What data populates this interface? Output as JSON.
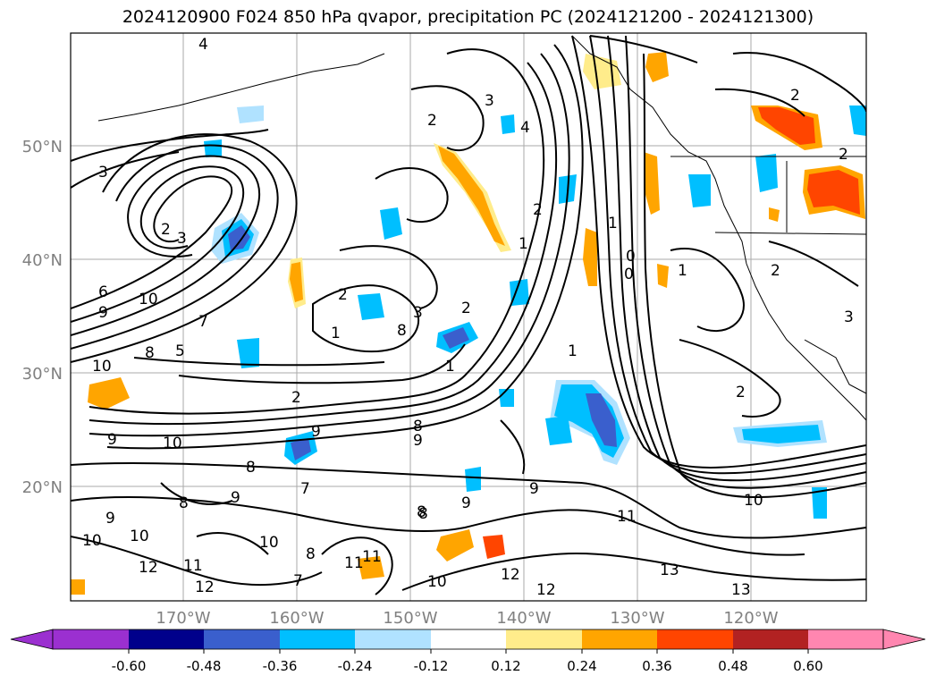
{
  "title": "2024120900 F024 850 hPa qvapor, precipitation PC (2024121200 - 2024121300)",
  "map": {
    "lat_labels": [
      "50°N",
      "40°N",
      "30°N",
      "20°N"
    ],
    "lon_labels": [
      "170°W",
      "160°W",
      "150°W",
      "140°W",
      "130°W",
      "120°W"
    ],
    "tick_label_color": "#808080",
    "contour_labels": [
      "4",
      "2",
      "3",
      "2",
      "3",
      "6",
      "10",
      "9",
      "8",
      "10",
      "5",
      "7",
      "1",
      "2",
      "2",
      "3",
      "4",
      "2",
      "1",
      "2",
      "1",
      "8",
      "3",
      "2",
      "1",
      "0",
      "0",
      "1",
      "2",
      "2",
      "1",
      "2",
      "3",
      "9",
      "10",
      "9",
      "8",
      "9",
      "8",
      "7",
      "9",
      "9",
      "8",
      "11",
      "10",
      "11",
      "12",
      "13",
      "13",
      "12",
      "10",
      "12",
      "12",
      "10",
      "9",
      "8",
      "7",
      "8",
      "11",
      "10",
      "8",
      "9",
      "10",
      "11"
    ]
  },
  "colorbar": {
    "ticks": [
      "-0.60",
      "-0.48",
      "-0.36",
      "-0.24",
      "-0.12",
      "0.12",
      "0.24",
      "0.36",
      "0.48",
      "0.60"
    ],
    "colors": [
      "#9b30d0",
      "#00008b",
      "#3a5fcd",
      "#00bfff",
      "#b0e2ff",
      "#ffffff",
      "#ffec8b",
      "#ffa500",
      "#ff4500",
      "#b22222",
      "#ff86b0"
    ]
  }
}
